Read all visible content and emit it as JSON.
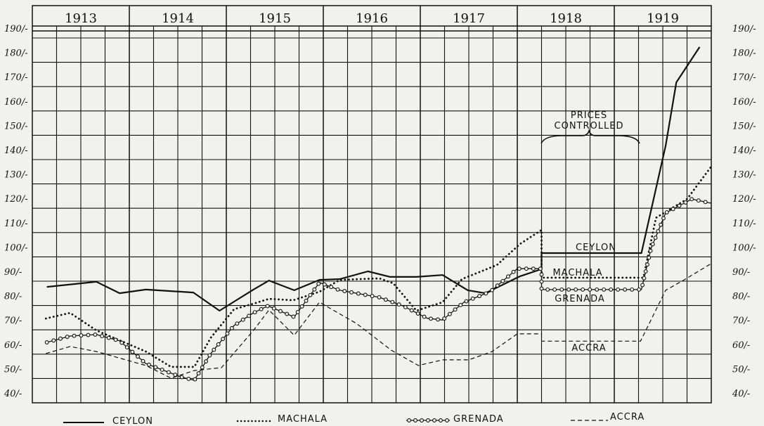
{
  "chart_data": {
    "type": "line",
    "title": "",
    "xlabel": "",
    "ylabel": "",
    "x_unit": "year",
    "x_categories": [
      "1913",
      "1914",
      "1915",
      "1916",
      "1917",
      "1918",
      "1919"
    ],
    "xlim": [
      1913,
      1920
    ],
    "ylim": [
      40,
      190
    ],
    "y_ticks": [
      "40/-",
      "50/-",
      "60/-",
      "70/-",
      "80/-",
      "90/-",
      "100/-",
      "110/-",
      "120/-",
      "130/-",
      "140/-",
      "150/-",
      "160/-",
      "170/-",
      "180/-",
      "190/-"
    ],
    "y_tick_values": [
      40,
      50,
      60,
      70,
      80,
      90,
      100,
      110,
      120,
      130,
      140,
      150,
      160,
      170,
      180,
      190
    ],
    "grid": true,
    "legend_position": "bottom",
    "annotations": {
      "prices_controlled_line1": "PRICES",
      "prices_controlled_line2": "CONTROLLED",
      "ceylon": "CEYLON",
      "machala": "MACHALA",
      "grenada": "GRENADA",
      "accra": "ACCRA"
    },
    "series": [
      {
        "name": "CEYLON",
        "style": "solid",
        "color": "#111111",
        "points": [
          [
            1913.15,
            83.9
          ],
          [
            1913.66,
            86.0
          ],
          [
            1913.9,
            81.3
          ],
          [
            1914.17,
            82.8
          ],
          [
            1914.66,
            81.6
          ],
          [
            1914.93,
            74.1
          ],
          [
            1915.28,
            82.8
          ],
          [
            1915.44,
            86.5
          ],
          [
            1915.7,
            82.5
          ],
          [
            1915.96,
            86.8
          ],
          [
            1916.17,
            87.1
          ],
          [
            1916.46,
            90.3
          ],
          [
            1916.69,
            88.0
          ],
          [
            1916.96,
            88.0
          ],
          [
            1917.23,
            88.8
          ],
          [
            1917.49,
            82.5
          ],
          [
            1917.67,
            81.3
          ],
          [
            1918.03,
            88.3
          ],
          [
            1918.25,
            91.2
          ],
          [
            1918.25,
            97.8
          ],
          [
            1919.28,
            97.8
          ],
          [
            1919.53,
            142
          ],
          [
            1919.64,
            168
          ],
          [
            1919.88,
            182.5
          ]
        ]
      },
      {
        "name": "MACHALA",
        "style": "dotted",
        "color": "#111111",
        "points": [
          [
            1913.14,
            70.9
          ],
          [
            1913.39,
            73.2
          ],
          [
            1913.66,
            66.0
          ],
          [
            1914.17,
            57.3
          ],
          [
            1914.43,
            51.0
          ],
          [
            1914.67,
            51.0
          ],
          [
            1914.84,
            63.0
          ],
          [
            1915.08,
            74.7
          ],
          [
            1915.28,
            77.0
          ],
          [
            1915.44,
            79.0
          ],
          [
            1915.69,
            78.4
          ],
          [
            1915.96,
            81.9
          ],
          [
            1916.17,
            86.8
          ],
          [
            1916.58,
            87.4
          ],
          [
            1916.72,
            85.4
          ],
          [
            1916.96,
            74.1
          ],
          [
            1917.23,
            77.6
          ],
          [
            1917.43,
            87.1
          ],
          [
            1917.79,
            92.9
          ],
          [
            1918.03,
            101.6
          ],
          [
            1918.25,
            107.3
          ],
          [
            1918.25,
            87.7
          ],
          [
            1919.3,
            87.7
          ],
          [
            1919.43,
            112.3
          ],
          [
            1919.75,
            120.0
          ],
          [
            1920.0,
            133.4
          ]
        ]
      },
      {
        "name": "GRENADA",
        "style": "circles",
        "color": "#111111",
        "points": [
          [
            1913.15,
            61.1
          ],
          [
            1913.39,
            63.7
          ],
          [
            1913.66,
            64.3
          ],
          [
            1913.9,
            61.7
          ],
          [
            1914.17,
            52.4
          ],
          [
            1914.53,
            46.9
          ],
          [
            1914.67,
            45.5
          ],
          [
            1914.84,
            56.5
          ],
          [
            1915.08,
            68.0
          ],
          [
            1915.28,
            73.2
          ],
          [
            1915.43,
            76.1
          ],
          [
            1915.7,
            71.5
          ],
          [
            1915.96,
            85.7
          ],
          [
            1916.17,
            82.5
          ],
          [
            1916.58,
            79.6
          ],
          [
            1916.82,
            76.1
          ],
          [
            1917.07,
            71.0
          ],
          [
            1917.23,
            70.3
          ],
          [
            1917.45,
            77.6
          ],
          [
            1917.72,
            81.9
          ],
          [
            1918.0,
            91.4
          ],
          [
            1918.25,
            91.4
          ],
          [
            1918.25,
            82.8
          ],
          [
            1919.28,
            82.8
          ],
          [
            1919.38,
            99.8
          ],
          [
            1919.53,
            114.3
          ],
          [
            1919.8,
            120.0
          ],
          [
            1920.0,
            118.3
          ]
        ]
      },
      {
        "name": "ACCRA",
        "style": "dashed",
        "color": "#111111",
        "points": [
          [
            1913.14,
            56.5
          ],
          [
            1913.39,
            59.4
          ],
          [
            1913.66,
            57.3
          ],
          [
            1914.17,
            51.6
          ],
          [
            1914.43,
            46.4
          ],
          [
            1914.67,
            49.5
          ],
          [
            1914.95,
            50.7
          ],
          [
            1915.28,
            66.0
          ],
          [
            1915.44,
            74.4
          ],
          [
            1915.7,
            64.0
          ],
          [
            1915.96,
            77.6
          ],
          [
            1916.34,
            68.9
          ],
          [
            1916.7,
            57.9
          ],
          [
            1916.98,
            51.6
          ],
          [
            1917.23,
            53.9
          ],
          [
            1917.5,
            53.9
          ],
          [
            1917.74,
            57.3
          ],
          [
            1918.0,
            64.6
          ],
          [
            1918.25,
            64.6
          ],
          [
            1918.25,
            61.6
          ],
          [
            1919.27,
            61.6
          ],
          [
            1919.53,
            82.5
          ],
          [
            1919.72,
            86.8
          ],
          [
            1920.0,
            93.5
          ]
        ]
      }
    ]
  }
}
